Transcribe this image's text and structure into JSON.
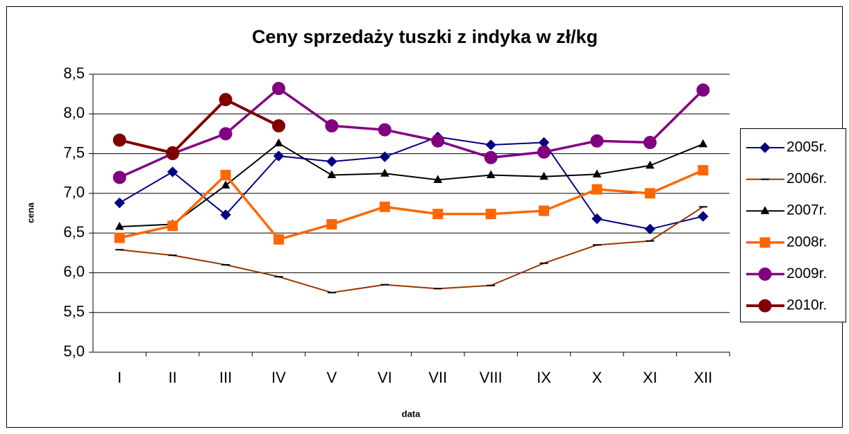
{
  "chart_data": {
    "type": "line",
    "title": "Ceny sprzedaży tuszki z indyka w zł/kg",
    "x_label": "data",
    "y_label": "cena",
    "categories": [
      "I",
      "II",
      "III",
      "IV",
      "V",
      "VI",
      "VII",
      "VIII",
      "IX",
      "X",
      "XI",
      "XII"
    ],
    "ylim": [
      5.0,
      8.5
    ],
    "yticks": [
      {
        "value": 5.0,
        "label": "5,0"
      },
      {
        "value": 5.5,
        "label": "5,5"
      },
      {
        "value": 6.0,
        "label": "6,0"
      },
      {
        "value": 6.5,
        "label": "6,5"
      },
      {
        "value": 7.0,
        "label": "7,0"
      },
      {
        "value": 7.5,
        "label": "7,5"
      },
      {
        "value": 8.0,
        "label": "8,0"
      },
      {
        "value": 8.5,
        "label": "8,5"
      }
    ],
    "grid": true,
    "legend": "right",
    "series": [
      {
        "name": "2005r.",
        "color": "#000080",
        "marker": "diamond",
        "values": [
          6.88,
          7.27,
          6.73,
          7.47,
          7.4,
          7.46,
          7.71,
          7.61,
          7.64,
          6.68,
          6.55,
          6.71
        ]
      },
      {
        "name": "2006r.",
        "color": "#993300",
        "marker": "dash",
        "values": [
          6.29,
          6.22,
          6.1,
          5.95,
          5.75,
          5.85,
          5.8,
          5.84,
          6.12,
          6.35,
          6.4,
          6.83
        ]
      },
      {
        "name": "2007r.",
        "color": "#000000",
        "marker": "triangle",
        "values": [
          6.58,
          6.61,
          7.1,
          7.63,
          7.23,
          7.25,
          7.17,
          7.23,
          7.21,
          7.24,
          7.35,
          7.62
        ]
      },
      {
        "name": "2008r.",
        "color": "#FF6600",
        "marker": "square",
        "values": [
          6.44,
          6.59,
          7.23,
          6.42,
          6.61,
          6.83,
          6.74,
          6.74,
          6.78,
          7.05,
          7.0,
          7.29
        ]
      },
      {
        "name": "2009r.",
        "color": "#800080",
        "marker": "circle",
        "values": [
          7.2,
          7.5,
          7.75,
          8.32,
          7.85,
          7.8,
          7.66,
          7.45,
          7.52,
          7.66,
          7.64,
          8.3
        ]
      },
      {
        "name": "2010r.",
        "color": "#800000",
        "marker": "circle",
        "values": [
          7.67,
          7.51,
          8.18,
          7.85,
          null,
          null,
          null,
          null,
          null,
          null,
          null,
          null
        ]
      }
    ]
  }
}
